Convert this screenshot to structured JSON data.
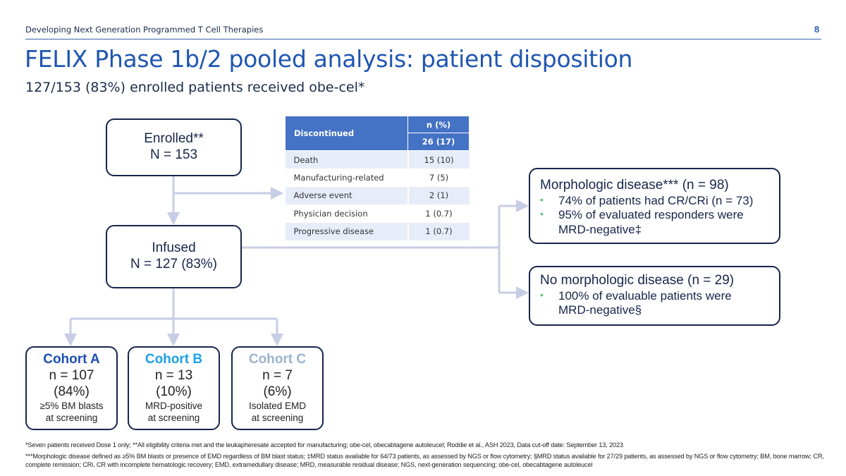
{
  "header": {
    "section": "Developing Next Generation Programmed T Cell Therapies",
    "page_number": "8"
  },
  "title": "FELIX Phase 1b/2 pooled analysis: patient disposition",
  "subtitle": "127/153 (83%) enrolled patients received obe-cel*",
  "enrolled": {
    "label": "Enrolled**",
    "n": "N = 153"
  },
  "infused": {
    "label": "Infused",
    "n": "N = 127 (83%)"
  },
  "table": {
    "header_label": "Discontinued",
    "col_header": "n (%)",
    "total": "26 (17)",
    "rows": [
      {
        "reason": "Death",
        "value": "15 (10)"
      },
      {
        "reason": "Manufacturing-related",
        "value": "7 (5)"
      },
      {
        "reason": "Adverse event",
        "value": "2 (1)"
      },
      {
        "reason": "Physician decision",
        "value": "1 (0.7)"
      },
      {
        "reason": "Progressive disease",
        "value": "1 (0.7)"
      }
    ]
  },
  "cohorts": [
    {
      "name": "Cohort A",
      "n": "n = 107",
      "pct": "(84%)",
      "desc1": "≥5% BM blasts",
      "desc2": "at screening",
      "color": "#1f4fb0"
    },
    {
      "name": "Cohort B",
      "n": "n = 13",
      "pct": "(10%)",
      "desc1": "MRD-positive",
      "desc2": "at screening",
      "color": "#1ea0e6"
    },
    {
      "name": "Cohort C",
      "n": "n = 7",
      "pct": "(6%)",
      "desc1": "Isolated EMD",
      "desc2": "at screening",
      "color": "#9ab4cc"
    }
  ],
  "morphologic": {
    "title": "Morphologic disease*** (n = 98)",
    "bullets": [
      "74% of patients had CR/CRi (n = 73)",
      "95% of evaluated responders were MRD-negative‡"
    ]
  },
  "no_morphologic": {
    "title": "No morphologic disease (n = 29)",
    "bullets": [
      "100% of evaluable patients were MRD-negative§"
    ]
  },
  "footnotes": [
    "*Seven patients received Dose 1 only; **All eligibility criteria met and the leukapheresate accepted for manufacturing; obe-cel, obecabtagene autoleucel; Roddie et al., ASH 2023, Data cut-off date: September 13, 2023",
    "***Morphologic disease defined as ≥5% BM blasts or presence of EMD regardless of BM blast status; ‡MRD status available for 64/73 patients, as assessed by NGS or flow cytometry; §MRD status available for 27/29 patients, as assessed by NGS or flow cytometry; BM, bone marrow; CR, complete remission; CRi, CR with incomplete hematologic recovery; EMD, extramedullary disease; MRD, measurable residual disease; NGS, next-generation sequencing; obe-cel, obecabtagene autoleucel"
  ],
  "colors": {
    "connector": "#c8cde6",
    "border": "#17254a",
    "table_header": "#4472c4",
    "bullet": "#5fc27a",
    "title": "#1f56b0"
  }
}
